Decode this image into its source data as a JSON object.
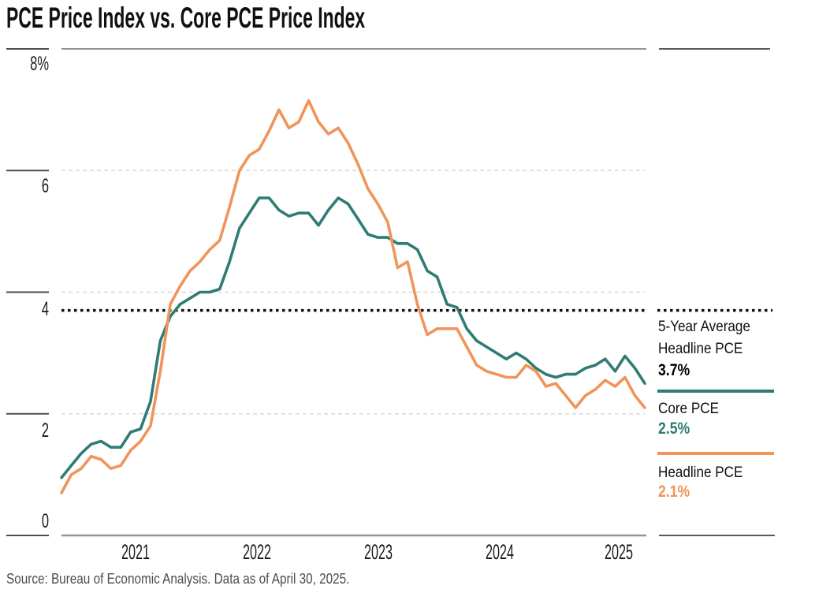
{
  "title": "PCE Price Index vs. Core PCE Price Index",
  "source_note": "Source: Bureau of Economic Analysis. Data as of April 30, 2025.",
  "colors": {
    "core": "#2f7c74",
    "headline": "#f0945a",
    "average": "#111111",
    "gridline": "#d8d8d8",
    "border": "#949494",
    "tick": "#4d4d4d"
  },
  "axes": {
    "y_ticks": [
      "8%",
      "6",
      "4",
      "2",
      "0"
    ],
    "x_ticks": [
      "2021",
      "2022",
      "2023",
      "2024",
      "2025"
    ]
  },
  "legend": {
    "items": [
      {
        "label_line1": "5-Year Average",
        "label_line2": "Headline PCE",
        "value": "3.7%"
      },
      {
        "label_line1": "Core PCE",
        "value": "2.5%"
      },
      {
        "label_line1": "Headline PCE",
        "value": "2.1%"
      }
    ]
  },
  "chart_data": {
    "type": "line",
    "title": "PCE Price Index vs. Core PCE Price Index",
    "ylim": [
      0,
      8
    ],
    "y_tick_values": [
      8,
      6,
      4,
      2,
      0
    ],
    "y_gridline_values": [
      6,
      4,
      2
    ],
    "grid": "dashed-horizontal",
    "legend_position": "right",
    "average_line": {
      "name": "5-Year Average Headline PCE",
      "value": 3.7,
      "style": "dotted"
    },
    "x": [
      "2020-05",
      "2020-06",
      "2020-07",
      "2020-08",
      "2020-09",
      "2020-10",
      "2020-11",
      "2020-12",
      "2021-01",
      "2021-02",
      "2021-03",
      "2021-04",
      "2021-05",
      "2021-06",
      "2021-07",
      "2021-08",
      "2021-09",
      "2021-10",
      "2021-11",
      "2021-12",
      "2022-01",
      "2022-02",
      "2022-03",
      "2022-04",
      "2022-05",
      "2022-06",
      "2022-07",
      "2022-08",
      "2022-09",
      "2022-10",
      "2022-11",
      "2022-12",
      "2023-01",
      "2023-02",
      "2023-03",
      "2023-04",
      "2023-05",
      "2023-06",
      "2023-07",
      "2023-08",
      "2023-09",
      "2023-10",
      "2023-11",
      "2023-12",
      "2024-01",
      "2024-02",
      "2024-03",
      "2024-04",
      "2024-05",
      "2024-06",
      "2024-07",
      "2024-08",
      "2024-09",
      "2024-10",
      "2024-11",
      "2024-12",
      "2025-01",
      "2025-02",
      "2025-03",
      "2025-04"
    ],
    "series": [
      {
        "name": "Core PCE",
        "color": "#2f7c74",
        "latest_value": 2.5,
        "values": [
          0.95,
          1.15,
          1.35,
          1.5,
          1.55,
          1.45,
          1.45,
          1.7,
          1.75,
          2.2,
          3.2,
          3.6,
          3.8,
          3.9,
          4.0,
          4.0,
          4.05,
          4.5,
          5.05,
          5.3,
          5.55,
          5.55,
          5.35,
          5.25,
          5.3,
          5.3,
          5.1,
          5.35,
          5.55,
          5.45,
          5.2,
          4.95,
          4.9,
          4.9,
          4.8,
          4.8,
          4.7,
          4.35,
          4.25,
          3.8,
          3.75,
          3.4,
          3.2,
          3.1,
          3.0,
          2.9,
          3.0,
          2.9,
          2.75,
          2.65,
          2.6,
          2.65,
          2.65,
          2.75,
          2.8,
          2.9,
          2.7,
          2.95,
          2.75,
          2.5
        ]
      },
      {
        "name": "Headline PCE",
        "color": "#f0945a",
        "latest_value": 2.1,
        "values": [
          0.7,
          1.0,
          1.1,
          1.3,
          1.25,
          1.1,
          1.15,
          1.4,
          1.55,
          1.8,
          2.7,
          3.8,
          4.1,
          4.35,
          4.5,
          4.7,
          4.85,
          5.4,
          6.0,
          6.25,
          6.35,
          6.65,
          7.0,
          6.7,
          6.8,
          7.15,
          6.8,
          6.6,
          6.7,
          6.45,
          6.1,
          5.7,
          5.45,
          5.15,
          4.4,
          4.5,
          3.8,
          3.3,
          3.4,
          3.4,
          3.4,
          3.1,
          2.8,
          2.7,
          2.65,
          2.6,
          2.6,
          2.8,
          2.7,
          2.45,
          2.5,
          2.3,
          2.1,
          2.3,
          2.4,
          2.55,
          2.45,
          2.6,
          2.3,
          2.1
        ]
      }
    ]
  }
}
